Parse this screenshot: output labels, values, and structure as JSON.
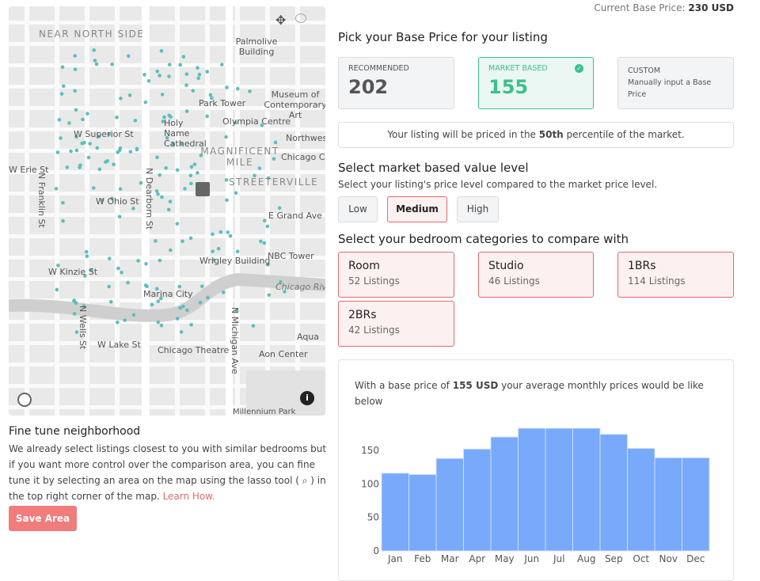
{
  "header": {
    "current_label": "Current Base Price:",
    "current_value": "230 USD"
  },
  "pick": {
    "title": "Pick your Base Price for your listing",
    "recommended": {
      "label": "RECOMMENDED",
      "value": "202"
    },
    "market": {
      "label": "MARKET BASED",
      "value": "155"
    },
    "custom": {
      "label": "CUSTOM",
      "desc": "Manually input a Base Price"
    },
    "percentile_pre": "Your listing will be priced in the ",
    "percentile_value": "50th",
    "percentile_post": " percentile of the market."
  },
  "level": {
    "title": "Select market based value level",
    "subtitle": "Select your listing's price level compared to the market price level.",
    "options": [
      "Low",
      "Medium",
      "High"
    ],
    "selected": "Medium"
  },
  "bedrooms": {
    "title": "Select your bedroom categories to compare with",
    "items": [
      {
        "name": "Room",
        "count": "52 Listings"
      },
      {
        "name": "Studio",
        "count": "46 Listings"
      },
      {
        "name": "1BRs",
        "count": "114 Listings"
      },
      {
        "name": "2BRs",
        "count": "42 Listings"
      }
    ]
  },
  "chart_text": {
    "pre": "With a base price of ",
    "price": "155 USD",
    "post": " your average monthly prices would be like below"
  },
  "chart_data": {
    "type": "bar",
    "categories": [
      "Jan",
      "Feb",
      "Mar",
      "Apr",
      "May",
      "Jun",
      "Jul",
      "Aug",
      "Sep",
      "Oct",
      "Nov",
      "Dec"
    ],
    "values": [
      116,
      114,
      138,
      152,
      170,
      183,
      183,
      183,
      174,
      153,
      139,
      139
    ],
    "yticks": [
      0,
      50,
      100,
      150
    ],
    "ylim": [
      0,
      190
    ],
    "color": "#78a9fb"
  },
  "map": {
    "labels": [
      "NEAR NORTH SIDE",
      "Palmolive Building",
      "Museum of Contemporary Art",
      "Park Tower",
      "Olympia Centre",
      "Holy Name Cathedral",
      "W Superior St",
      "MAGNIFICENT MILE",
      "Northwestern Univers",
      "Chicago Ca",
      "STREETERVILLE",
      "W Erie St",
      "N Franklin St",
      "N Dearborn St",
      "W Ohio St",
      "E Grand Ave",
      "NBC Tower",
      "Wrigley Building",
      "W Kinzie St",
      "Chicago Rive",
      "Marina City",
      "N Wells St",
      "N Michigan Ave",
      "Aqua",
      "W Lake St",
      "Chicago Theatre",
      "Aon Center",
      "Millennium Park"
    ],
    "dot_color": "#5bbfbf"
  },
  "neighborhood": {
    "title": "Fine tune neighborhood",
    "text": "We already select listings closest to you with similar bedrooms but if you want more control over the comparison area, you can fine tune it by selecting an area on the map using the lasso tool ( ⌕ ) in the top right corner of the map. ",
    "link": "Learn How.",
    "save": "Save Area"
  }
}
